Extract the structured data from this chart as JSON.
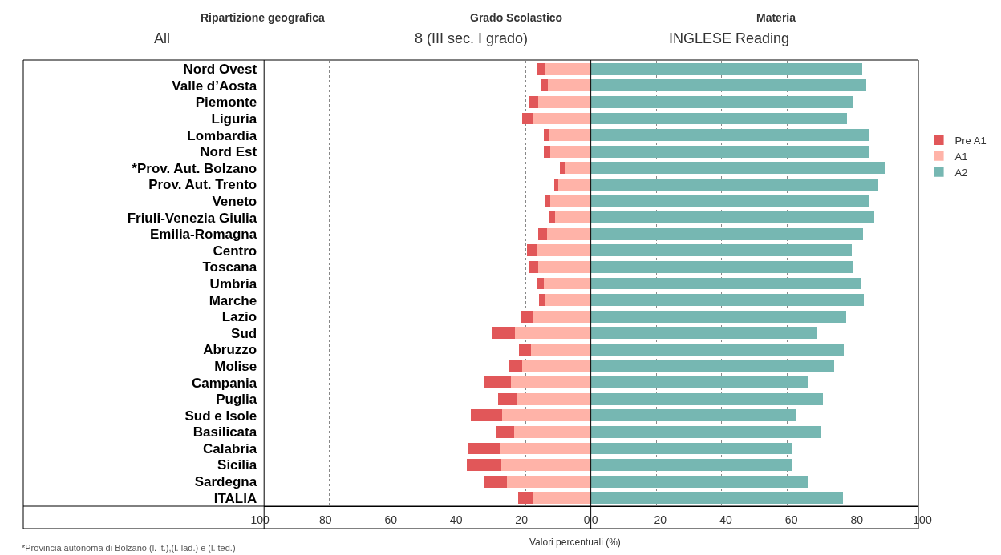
{
  "chart_data": [
    {
      "type": "bar",
      "orientation": "horizontal",
      "stacked": true,
      "xlim": [
        100,
        0
      ],
      "xticks": [
        100,
        80,
        60,
        40,
        20,
        0
      ],
      "grid": "x",
      "legend": "top right",
      "categories": [
        "Nord Ovest",
        "Valle d’Aosta",
        "Piemonte",
        "Liguria",
        "Lombardia",
        "Nord Est",
        "*Prov. Aut. Bolzano",
        "Prov. Aut. Trento",
        "Veneto",
        "Friuli-Venezia Giulia",
        "Emilia-Romagna",
        "Centro",
        "Toscana",
        "Umbria",
        "Marche",
        "Lazio",
        "Sud",
        "Abruzzo",
        "Molise",
        "Campania",
        "Puglia",
        "Sud e Isole",
        "Basilicata",
        "Calabria",
        "Sicilia",
        "Sardegna",
        "ITALIA"
      ],
      "series": [
        {
          "name": "A1",
          "color": "#ffb3a8",
          "values": [
            13.9,
            13.1,
            16.1,
            17.5,
            12.6,
            12.4,
            8.1,
            9.9,
            12.3,
            10.9,
            13.5,
            16.3,
            16.1,
            14.3,
            13.9,
            17.5,
            23.1,
            18.3,
            21.0,
            24.5,
            22.5,
            27.2,
            23.4,
            28.0,
            27.4,
            25.7,
            17.8
          ]
        },
        {
          "name": "Pre A1",
          "color": "#e15759",
          "values": [
            2.4,
            2.0,
            2.9,
            3.4,
            1.7,
            1.9,
            1.3,
            1.4,
            1.8,
            1.7,
            2.6,
            3.2,
            2.9,
            2.2,
            1.9,
            3.8,
            7.1,
            3.6,
            3.9,
            8.3,
            5.9,
            9.4,
            5.4,
            9.8,
            10.6,
            7.0,
            4.4
          ]
        }
      ],
      "annotations": [
        "Ripartizione geografica",
        "All",
        "Grado Scolastico",
        "8 (III sec. I grado)",
        "Materia",
        "INGLESE Reading",
        "*Provincia autonoma di Bolzano (l. it.),(l. lad.) e (l. ted.)"
      ]
    },
    {
      "type": "bar",
      "orientation": "horizontal",
      "xlim": [
        0,
        100
      ],
      "xticks": [
        0,
        20,
        40,
        60,
        80,
        100
      ],
      "grid": "x",
      "legend": "top right",
      "tick_labels": "x",
      "xlabel": "Valori percentuali (%)",
      "categories": [
        "Nord Ovest",
        "Valle d’Aosta",
        "Piemonte",
        "Liguria",
        "Lombardia",
        "Nord Est",
        "*Prov. Aut. Bolzano",
        "Prov. Aut. Trento",
        "Veneto",
        "Friuli-Venezia Giulia",
        "Emilia-Romagna",
        "Centro",
        "Toscana",
        "Umbria",
        "Marche",
        "Lazio",
        "Sud",
        "Abruzzo",
        "Molise",
        "Campania",
        "Puglia",
        "Sud e Isole",
        "Basilicata",
        "Calabria",
        "Sicilia",
        "Sardegna",
        "ITALIA"
      ],
      "series": [
        {
          "name": "A2",
          "color": "#76b7b2",
          "values": [
            82.9,
            84.1,
            80.2,
            78.3,
            84.8,
            84.8,
            89.7,
            87.8,
            85.1,
            86.6,
            83.1,
            79.7,
            80.2,
            82.6,
            83.3,
            77.9,
            69.1,
            77.2,
            74.3,
            66.5,
            70.8,
            62.8,
            70.4,
            61.6,
            61.4,
            66.5,
            77.0
          ]
        }
      ]
    }
  ]
}
